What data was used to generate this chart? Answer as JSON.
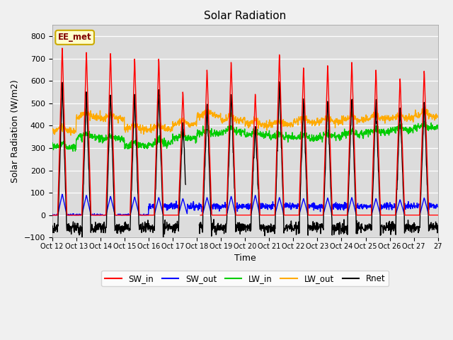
{
  "title": "Solar Radiation",
  "xlabel": "Time",
  "ylabel": "Solar Radiation (W/m2)",
  "ylim": [
    -100,
    850
  ],
  "yticks": [
    -100,
    0,
    100,
    200,
    300,
    400,
    500,
    600,
    700,
    800
  ],
  "annotation": "EE_met",
  "plot_bg_color": "#dcdcdc",
  "fig_bg_color": "#f0f0f0",
  "x_labels": [
    "Oct 12",
    "Oct 13",
    "Oct 14",
    "Oct 15",
    "Oct 16",
    "Oct 17",
    "Oct 18",
    "Oct 19",
    "Oct 20",
    "Oct 21",
    "Oct 22",
    "Oct 23",
    "Oct 24",
    "Oct 25",
    "Oct 26",
    "Oct 27"
  ],
  "colors": {
    "SW_in": "#ff0000",
    "SW_out": "#0000ff",
    "LW_in": "#00cc00",
    "LW_out": "#ffaa00",
    "Rnet": "#000000"
  },
  "legend_labels": [
    "SW_in",
    "SW_out",
    "LW_in",
    "LW_out",
    "Rnet"
  ],
  "daily_peaks_sw_in": [
    760,
    740,
    735,
    710,
    710,
    560,
    660,
    695,
    550,
    730,
    670,
    680,
    695,
    660,
    620,
    655
  ],
  "daily_peaks_sw_out": [
    95,
    90,
    85,
    82,
    80,
    75,
    80,
    85,
    90,
    80,
    75,
    78,
    80,
    75,
    70,
    78
  ],
  "lw_in_base": [
    305,
    350,
    340,
    310,
    320,
    345,
    365,
    375,
    360,
    350,
    345,
    350,
    362,
    370,
    380,
    390
  ],
  "lw_out_base": [
    375,
    440,
    432,
    385,
    385,
    405,
    445,
    425,
    405,
    405,
    415,
    418,
    425,
    432,
    432,
    442
  ]
}
